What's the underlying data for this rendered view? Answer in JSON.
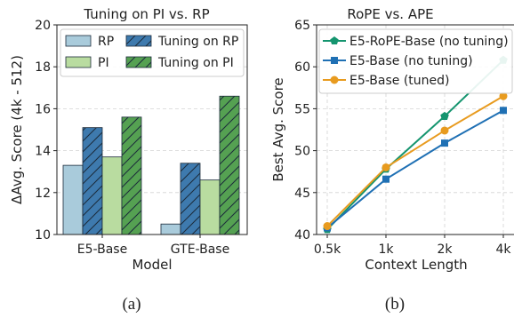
{
  "chart_data": [
    {
      "type": "bar",
      "panel_label": "(a)",
      "title": "Tuning on PI vs. RP",
      "xlabel": "Model",
      "ylabel": "ΔAvg. Score (4k - 512)",
      "ylim": [
        10,
        20
      ],
      "yticks": [
        "10",
        "12",
        "14",
        "16",
        "18",
        "20"
      ],
      "categories": [
        "E5-Base",
        "GTE-Base"
      ],
      "legend_position": "top",
      "series": [
        {
          "name": "RP",
          "values": [
            13.3,
            10.5
          ],
          "color": "#a9cbdb",
          "hatch": false
        },
        {
          "name": "Tuning on RP",
          "values": [
            15.1,
            13.4
          ],
          "color": "#3e7aae",
          "hatch": true
        },
        {
          "name": "PI",
          "values": [
            13.7,
            12.6
          ],
          "color": "#b9dca0",
          "hatch": false
        },
        {
          "name": "Tuning on PI",
          "values": [
            15.6,
            16.6
          ],
          "color": "#55a152",
          "hatch": true
        }
      ]
    },
    {
      "type": "line",
      "panel_label": "(b)",
      "title": "RoPE vs. APE",
      "xlabel": "Context Length",
      "ylabel": "Best Avg. Score",
      "x": [
        "0.5k",
        "1k",
        "2k",
        "4k"
      ],
      "ylim": [
        40,
        65
      ],
      "yticks": [
        "40",
        "45",
        "50",
        "55",
        "60",
        "65"
      ],
      "grid": true,
      "legend_position": "top-left",
      "series": [
        {
          "name": "E5-RoPE-Base (no tuning)",
          "values": [
            40.6,
            47.8,
            54.1,
            60.8
          ],
          "color": "#15956f",
          "marker": "pentagon"
        },
        {
          "name": "E5-Base (no tuning)",
          "values": [
            40.8,
            46.6,
            50.9,
            54.8
          ],
          "color": "#1f70b4",
          "marker": "square"
        },
        {
          "name": "E5-Base (tuned)",
          "values": [
            41.0,
            48.0,
            52.4,
            56.5
          ],
          "color": "#e89b1f",
          "marker": "circle"
        }
      ]
    }
  ]
}
